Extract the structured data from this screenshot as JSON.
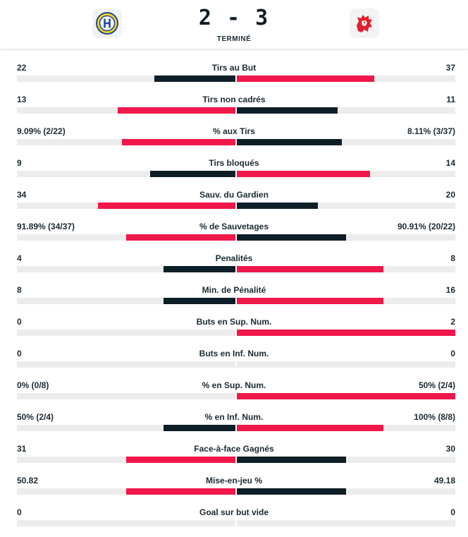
{
  "match": {
    "score": "2 - 3",
    "status": "TERMINÉ",
    "home_logo": "hc-davos-logo",
    "away_logo": "lausanne-hc-logo"
  },
  "colors": {
    "win": "#f0174a",
    "lose": "#0e1e27",
    "track": "#ececec"
  },
  "stats": [
    {
      "label": "Tirs au But",
      "left": "22",
      "right": "37",
      "left_share": 0.37,
      "right_share": 0.63,
      "leader": "right"
    },
    {
      "label": "Tirs non cadrés",
      "left": "13",
      "right": "11",
      "left_share": 0.54,
      "right_share": 0.46,
      "leader": "left"
    },
    {
      "label": "% aux Tirs",
      "left": "9.09% (2/22)",
      "right": "8.11% (3/37)",
      "left_share": 0.52,
      "right_share": 0.48,
      "leader": "left"
    },
    {
      "label": "Tirs bloqués",
      "left": "9",
      "right": "14",
      "left_share": 0.39,
      "right_share": 0.61,
      "leader": "right"
    },
    {
      "label": "Sauv. du Gardien",
      "left": "34",
      "right": "20",
      "left_share": 0.63,
      "right_share": 0.37,
      "leader": "left"
    },
    {
      "label": "% de Sauvetages",
      "left": "91.89% (34/37)",
      "right": "90.91% (20/22)",
      "left_share": 0.5,
      "right_share": 0.5,
      "leader": "left"
    },
    {
      "label": "Penalités",
      "left": "4",
      "right": "8",
      "left_share": 0.33,
      "right_share": 0.67,
      "leader": "right"
    },
    {
      "label": "Min. de Pénalité",
      "left": "8",
      "right": "16",
      "left_share": 0.33,
      "right_share": 0.67,
      "leader": "right"
    },
    {
      "label": "Buts en Sup. Num.",
      "left": "0",
      "right": "2",
      "left_share": 0.0,
      "right_share": 1.0,
      "leader": "right"
    },
    {
      "label": "Buts en Inf. Num.",
      "left": "0",
      "right": "0",
      "left_share": 0.0,
      "right_share": 0.0,
      "leader": "none"
    },
    {
      "label": "% en Sup. Num.",
      "left": "0% (0/8)",
      "right": "50% (2/4)",
      "left_share": 0.0,
      "right_share": 1.0,
      "leader": "right"
    },
    {
      "label": "% en Inf. Num.",
      "left": "50% (2/4)",
      "right": "100% (8/8)",
      "left_share": 0.33,
      "right_share": 0.67,
      "leader": "right"
    },
    {
      "label": "Face-à-face Gagnés",
      "left": "31",
      "right": "30",
      "left_share": 0.5,
      "right_share": 0.5,
      "leader": "left"
    },
    {
      "label": "Mise-en-jeu %",
      "left": "50.82",
      "right": "49.18",
      "left_share": 0.5,
      "right_share": 0.5,
      "leader": "left"
    },
    {
      "label": "Goal sur but vide",
      "left": "0",
      "right": "0",
      "left_share": 0.0,
      "right_share": 0.0,
      "leader": "none"
    }
  ]
}
